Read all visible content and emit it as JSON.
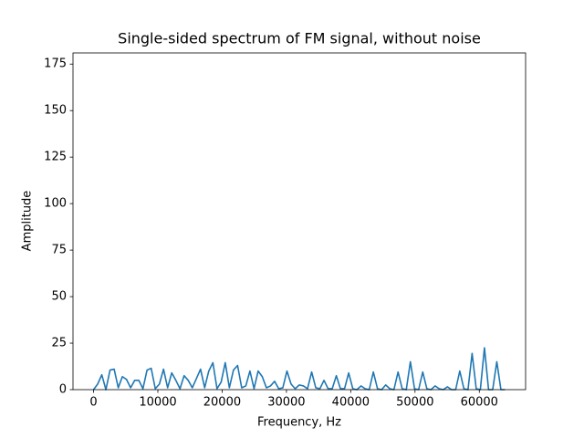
{
  "chart_data": {
    "type": "line",
    "title": "Single-sided spectrum of FM signal, without noise",
    "xlabel": "Frequency, Hz",
    "ylabel": "Amplitude",
    "x": [
      0,
      640,
      1280,
      1920,
      2560,
      3200,
      3840,
      4480,
      5120,
      5760,
      6400,
      7040,
      7680,
      8320,
      8960,
      9600,
      10240,
      10880,
      11520,
      12160,
      12800,
      13440,
      14080,
      14720,
      15360,
      16000,
      16640,
      17280,
      17920,
      18560,
      19200,
      19840,
      20480,
      21120,
      21760,
      22400,
      23040,
      23680,
      24320,
      24960,
      25600,
      26240,
      26880,
      27520,
      28160,
      28800,
      29440,
      30080,
      30720,
      31360,
      32000,
      32640,
      33280,
      33920,
      34560,
      35200,
      35840,
      36480,
      37120,
      37760,
      38400,
      39040,
      39680,
      40320,
      40960,
      41600,
      42240,
      42880,
      43520,
      44160,
      44800,
      45440,
      46080,
      46720,
      47360,
      48000,
      48640,
      49280,
      49920,
      50560,
      51200,
      51840,
      52480,
      53120,
      53760,
      54400,
      55040,
      55680,
      56320,
      56960,
      57600,
      58240,
      58880,
      59520,
      60160,
      60800,
      61440,
      62080,
      62720,
      63360,
      64000
    ],
    "series": [
      {
        "color": "#1f77b4",
        "values": [
          0,
          3,
          8,
          0,
          10.5,
          11,
          1,
          7,
          5.5,
          1,
          5,
          5,
          0.5,
          10.5,
          11.5,
          0.5,
          3,
          11,
          1,
          9,
          5,
          0.5,
          7.5,
          5,
          1,
          6,
          11,
          1,
          10,
          14.5,
          0.5,
          4,
          14.5,
          1,
          10.5,
          13,
          1,
          2,
          10,
          0.5,
          10,
          7,
          1,
          2,
          4.5,
          0.5,
          1,
          10,
          3,
          0.5,
          2.5,
          2,
          0.5,
          9.5,
          1,
          0.5,
          5,
          0.5,
          0.5,
          7.5,
          0.5,
          0.5,
          9,
          0.5,
          0,
          2,
          0.5,
          0,
          9.5,
          0.5,
          0,
          2.5,
          0.5,
          0,
          9.5,
          0.5,
          0,
          15,
          0.5,
          0,
          9.5,
          0.5,
          0,
          2,
          0.5,
          0,
          1.5,
          0,
          0,
          10,
          0.5,
          0,
          19.5,
          0.5,
          0,
          22.5,
          0,
          0,
          15,
          0,
          0
        ]
      }
    ],
    "xlim": [
      -3200,
      67200
    ],
    "ylim": [
      0,
      181
    ],
    "xticks": [
      0,
      10000,
      20000,
      30000,
      40000,
      50000,
      60000
    ],
    "yticks": [
      0,
      25,
      50,
      75,
      100,
      125,
      150,
      175
    ]
  }
}
